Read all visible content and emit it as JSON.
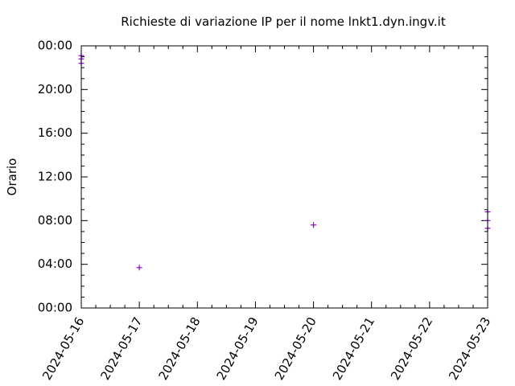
{
  "chart_data": {
    "type": "scatter",
    "title": "Richieste di variazione IP per il nome lnkt1.dyn.ingv.it",
    "xlabel": "",
    "ylabel": "Orario",
    "x_ticks": [
      "2024-05-16",
      "2024-05-17",
      "2024-05-18",
      "2024-05-19",
      "2024-05-20",
      "2024-05-21",
      "2024-05-22",
      "2024-05-23"
    ],
    "y_ticks": [
      "00:00",
      "04:00",
      "08:00",
      "12:00",
      "16:00",
      "20:00",
      "00:00"
    ],
    "xlim": [
      "2024-05-16",
      "2024-05-23"
    ],
    "ylim_hours": [
      0,
      24
    ],
    "grid": false,
    "series": [
      {
        "color": "#9400d3",
        "points": [
          {
            "date": "2024-05-16",
            "hour": 23.1
          },
          {
            "date": "2024-05-16",
            "hour": 22.8
          },
          {
            "date": "2024-05-16",
            "hour": 22.4
          },
          {
            "date": "2024-05-17",
            "hour": 3.7
          },
          {
            "date": "2024-05-20",
            "hour": 7.6
          },
          {
            "date": "2024-05-23",
            "hour": 8.8
          },
          {
            "date": "2024-05-23",
            "hour": 8.0
          },
          {
            "date": "2024-05-23",
            "hour": 7.3
          }
        ]
      }
    ]
  }
}
